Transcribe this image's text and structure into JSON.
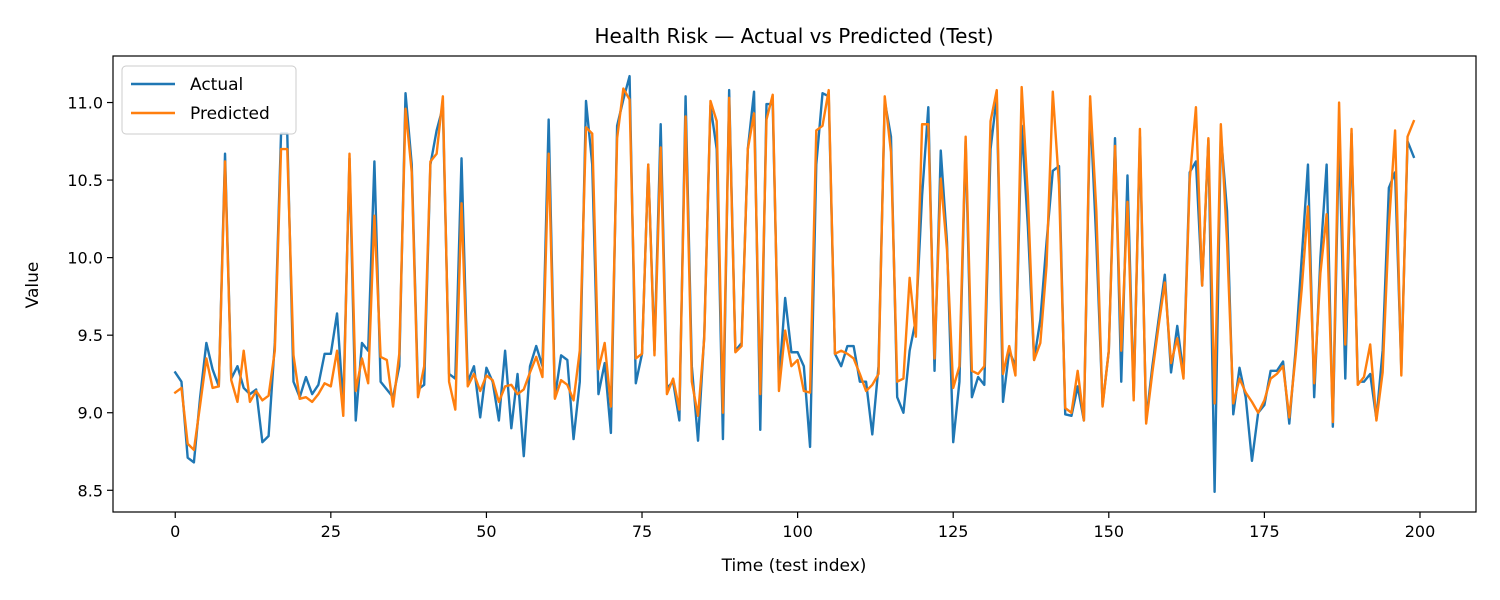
{
  "chart_data": {
    "type": "line",
    "title": "Health Risk — Actual vs Predicted (Test)",
    "xlabel": "Time (test index)",
    "ylabel": "Value",
    "xlim": [
      -10,
      209
    ],
    "ylim": [
      8.36,
      11.3
    ],
    "x_ticks": [
      0,
      25,
      50,
      75,
      100,
      125,
      150,
      175,
      200
    ],
    "y_ticks": [
      8.5,
      9.0,
      9.5,
      10.0,
      10.5,
      11.0
    ],
    "grid": false,
    "legend_position": "top-left",
    "series": [
      {
        "name": "Actual",
        "color": "#1f77b4",
        "values": [
          9.26,
          9.2,
          8.71,
          8.68,
          9.1,
          9.45,
          9.28,
          9.17,
          10.67,
          9.22,
          9.3,
          9.16,
          9.12,
          9.15,
          8.81,
          8.85,
          9.45,
          10.8,
          10.8,
          9.2,
          9.1,
          9.23,
          9.12,
          9.18,
          9.38,
          9.38,
          9.64,
          9.05,
          10.64,
          8.95,
          9.45,
          9.4,
          10.62,
          9.2,
          9.15,
          9.1,
          9.3,
          11.06,
          10.6,
          9.15,
          9.18,
          10.6,
          10.82,
          10.97,
          9.25,
          9.22,
          10.64,
          9.2,
          9.3,
          8.97,
          9.29,
          9.2,
          8.95,
          9.4,
          8.9,
          9.25,
          8.72,
          9.3,
          9.43,
          9.3,
          10.89,
          9.1,
          9.37,
          9.34,
          8.83,
          9.2,
          11.01,
          10.6,
          9.12,
          9.32,
          8.87,
          10.85,
          11.02,
          11.17,
          9.19,
          9.38,
          10.6,
          9.4,
          10.86,
          9.16,
          9.2,
          8.95,
          11.04,
          9.3,
          8.82,
          9.5,
          10.98,
          10.7,
          8.83,
          11.08,
          9.4,
          9.45,
          10.7,
          11.07,
          8.89,
          10.99,
          10.99,
          9.2,
          9.74,
          9.39,
          9.39,
          9.3,
          8.78,
          10.6,
          11.06,
          11.04,
          9.38,
          9.3,
          9.43,
          9.43,
          9.2,
          9.2,
          8.86,
          9.3,
          11.01,
          10.78,
          9.1,
          9.0,
          9.4,
          9.6,
          10.4,
          10.97,
          9.27,
          10.69,
          10.1,
          8.81,
          9.2,
          10.75,
          9.1,
          9.23,
          9.18,
          10.7,
          11.04,
          9.07,
          9.4,
          9.3,
          10.85,
          10.2,
          9.34,
          9.6,
          10.1,
          10.56,
          10.59,
          8.99,
          8.98,
          9.17,
          8.95,
          10.97,
          10.1,
          9.05,
          9.4,
          10.77,
          9.2,
          10.53,
          9.1,
          10.78,
          8.95,
          9.3,
          9.6,
          9.89,
          9.26,
          9.56,
          9.25,
          10.55,
          10.62,
          9.82,
          10.76,
          8.49,
          10.8,
          10.3,
          8.99,
          9.29,
          9.1,
          8.69,
          9.0,
          9.05,
          9.27,
          9.27,
          9.33,
          8.93,
          9.4,
          10.0,
          10.6,
          9.1,
          10.0,
          10.6,
          8.91,
          10.8,
          9.22,
          10.8,
          9.2,
          9.2,
          9.25,
          8.96,
          9.4,
          10.45,
          10.55,
          9.28,
          10.75,
          10.65
        ]
      },
      {
        "name": "Predicted",
        "color": "#ff7f0e",
        "values": [
          9.13,
          9.16,
          8.8,
          8.76,
          9.05,
          9.35,
          9.16,
          9.17,
          10.62,
          9.21,
          9.07,
          9.4,
          9.07,
          9.14,
          9.08,
          9.11,
          9.4,
          10.7,
          10.7,
          9.37,
          9.09,
          9.1,
          9.07,
          9.12,
          9.19,
          9.17,
          9.4,
          8.98,
          10.67,
          9.14,
          9.35,
          9.19,
          10.27,
          9.36,
          9.34,
          9.04,
          9.38,
          10.96,
          10.55,
          9.1,
          9.3,
          10.62,
          10.67,
          11.04,
          9.2,
          9.02,
          10.35,
          9.17,
          9.25,
          9.14,
          9.24,
          9.21,
          9.07,
          9.17,
          9.18,
          9.12,
          9.15,
          9.26,
          9.36,
          9.23,
          10.67,
          9.09,
          9.21,
          9.18,
          9.08,
          9.4,
          10.84,
          10.8,
          9.28,
          9.45,
          9.04,
          10.77,
          11.09,
          11.02,
          9.35,
          9.38,
          10.6,
          9.37,
          10.71,
          9.12,
          9.22,
          9.02,
          10.91,
          9.2,
          8.98,
          9.48,
          11.01,
          10.88,
          9.0,
          11.03,
          9.39,
          9.43,
          10.7,
          10.93,
          9.12,
          10.89,
          11.05,
          9.14,
          9.53,
          9.3,
          9.34,
          9.14,
          9.13,
          10.82,
          10.85,
          11.08,
          9.38,
          9.4,
          9.38,
          9.35,
          9.25,
          9.14,
          9.18,
          9.25,
          11.04,
          10.68,
          9.2,
          9.22,
          9.87,
          9.49,
          10.86,
          10.86,
          9.35,
          10.51,
          10.05,
          9.16,
          9.3,
          10.78,
          9.27,
          9.25,
          9.3,
          10.88,
          11.08,
          9.25,
          9.43,
          9.24,
          11.1,
          10.4,
          9.34,
          9.45,
          9.95,
          11.07,
          10.47,
          9.03,
          9.0,
          9.27,
          8.95,
          11.04,
          10.3,
          9.04,
          9.4,
          10.72,
          9.4,
          10.36,
          9.08,
          10.83,
          8.93,
          9.26,
          9.56,
          9.84,
          9.32,
          9.48,
          9.22,
          10.5,
          10.97,
          9.82,
          10.77,
          9.06,
          10.86,
          10.1,
          9.06,
          9.22,
          9.13,
          9.07,
          9.0,
          9.08,
          9.22,
          9.25,
          9.3,
          8.97,
          9.36,
          9.8,
          10.33,
          9.19,
          9.9,
          10.28,
          8.94,
          11.0,
          9.44,
          10.83,
          9.18,
          9.23,
          9.44,
          8.95,
          9.26,
          10.2,
          10.82,
          9.24,
          10.78,
          10.88
        ]
      }
    ]
  }
}
